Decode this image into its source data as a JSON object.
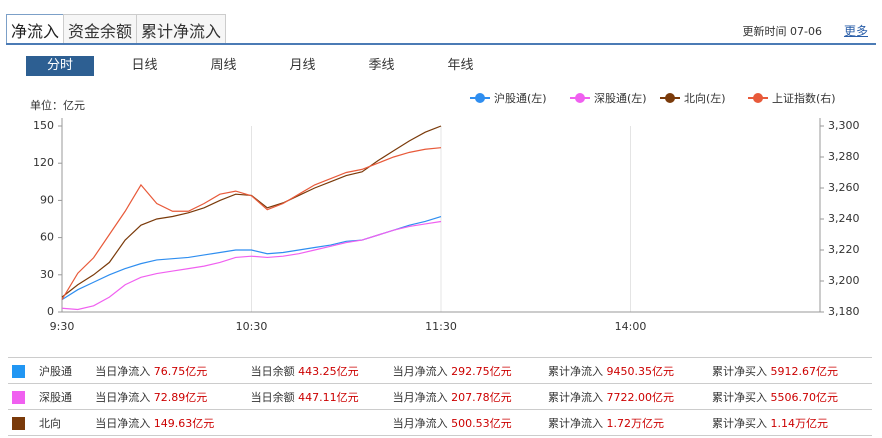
{
  "header": {
    "tabs": [
      "净流入",
      "资金余额",
      "累计净流入"
    ],
    "update_label": "更新时间",
    "update_time": "07-06",
    "more": "更多"
  },
  "periods": [
    "分时",
    "日线",
    "周线",
    "月线",
    "季线",
    "年线"
  ],
  "chart_data": {
    "type": "line",
    "unit": "单位：亿元",
    "x": [
      0,
      5,
      10,
      15,
      20,
      25,
      30,
      35,
      40,
      45,
      50,
      55,
      60,
      65,
      70,
      75,
      80,
      85,
      90,
      95,
      100,
      105,
      110,
      115,
      120
    ],
    "xlim": [
      0,
      240
    ],
    "xticks": [
      {
        "value": 0,
        "label": "9:30"
      },
      {
        "value": 60,
        "label": "10:30"
      },
      {
        "value": 120,
        "label": "11:30"
      },
      {
        "value": 180,
        "label": "14:00"
      }
    ],
    "ylim": [
      0,
      150
    ],
    "yticks": [
      0,
      30,
      60,
      90,
      120,
      150
    ],
    "y2lim": [
      3180,
      3300
    ],
    "y2ticks": [
      {
        "value": 3180,
        "label": "3,180"
      },
      {
        "value": 3200,
        "label": "3,200"
      },
      {
        "value": 3220,
        "label": "3,220"
      },
      {
        "value": 3240,
        "label": "3,240"
      },
      {
        "value": 3260,
        "label": "3,260"
      },
      {
        "value": 3280,
        "label": "3,280"
      },
      {
        "value": 3300,
        "label": "3,300"
      }
    ],
    "grid": true,
    "series": [
      {
        "name": "沪股通(左)",
        "color": "#2f8ef0",
        "values": [
          10,
          18,
          24,
          30,
          35,
          39,
          42,
          43,
          44,
          46,
          48,
          50,
          50,
          47,
          48,
          50,
          52,
          54,
          57,
          58,
          62,
          66,
          70,
          73,
          77
        ]
      },
      {
        "name": "深股通(左)",
        "color": "#f060f0",
        "values": [
          3,
          2,
          5,
          12,
          22,
          28,
          31,
          33,
          35,
          37,
          40,
          44,
          45,
          44,
          45,
          47,
          50,
          53,
          56,
          58,
          62,
          66,
          69,
          71,
          73
        ]
      },
      {
        "name": "北向(左)",
        "color": "#7a3a0a",
        "values": [
          12,
          22,
          30,
          40,
          58,
          70,
          75,
          77,
          80,
          84,
          90,
          95,
          94,
          84,
          88,
          94,
          100,
          105,
          110,
          113,
          122,
          130,
          138,
          145,
          150
        ]
      },
      {
        "name": "上证指数(右)",
        "color": "#e85a3a",
        "axis": "y2",
        "values": [
          3188,
          3205,
          3215,
          3230,
          3245,
          3262,
          3250,
          3245,
          3245,
          3250,
          3256,
          3258,
          3255,
          3246,
          3250,
          3256,
          3262,
          3266,
          3270,
          3272,
          3276,
          3280,
          3283,
          3285,
          3286
        ]
      }
    ]
  },
  "table": {
    "rows": [
      {
        "name": "沪股通",
        "color": "#2196f3",
        "cells": [
          [
            "当日净流入",
            "76.75亿元"
          ],
          [
            "当日余额",
            "443.25亿元"
          ],
          [
            "当月净流入",
            "292.75亿元"
          ],
          [
            "累计净流入",
            "9450.35亿元"
          ],
          [
            "累计净买入",
            "5912.67亿元"
          ]
        ]
      },
      {
        "name": "深股通",
        "color": "#f060f0",
        "cells": [
          [
            "当日净流入",
            "72.89亿元"
          ],
          [
            "当日余额",
            "447.11亿元"
          ],
          [
            "当月净流入",
            "207.78亿元"
          ],
          [
            "累计净流入",
            "7722.00亿元"
          ],
          [
            "累计净买入",
            "5506.70亿元"
          ]
        ]
      },
      {
        "name": "北向",
        "color": "#7a3a0a",
        "cells": [
          [
            "当日净流入",
            "149.63亿元"
          ],
          null,
          [
            "当月净流入",
            "500.53亿元"
          ],
          [
            "累计净流入",
            "1.72万亿元"
          ],
          [
            "累计净买入",
            "1.14万亿元"
          ]
        ]
      }
    ]
  }
}
